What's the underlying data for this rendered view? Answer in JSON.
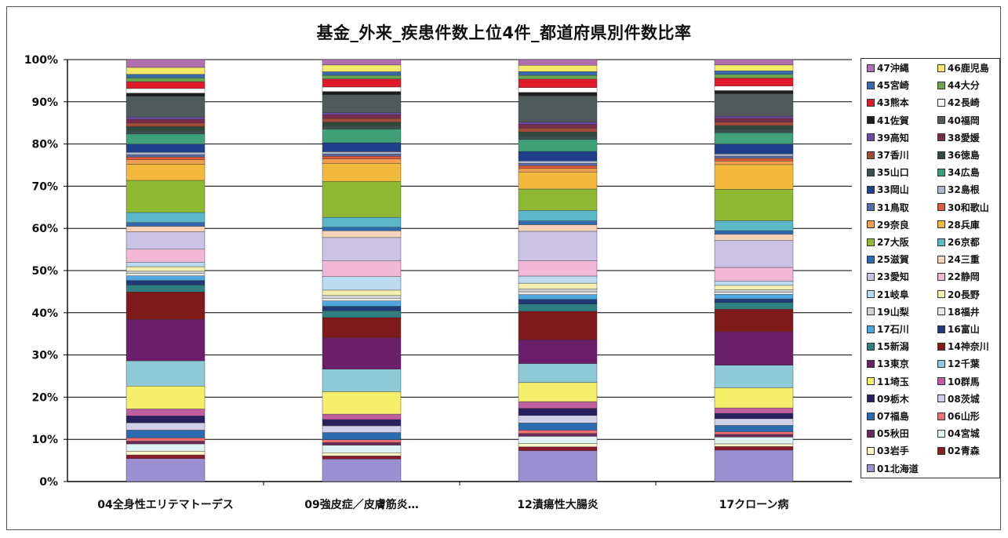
{
  "chart_data": {
    "type": "bar",
    "stacked": true,
    "normalized": true,
    "title": "基金_外来_疾患件数上位4件_都道府県別件数比率",
    "categories": [
      "04全身性エリテマトーデス",
      "09強皮症／皮膚筋炎…",
      "12潰瘍性大腸炎",
      "17クローン病"
    ],
    "y_ticks": [
      "0%",
      "10%",
      "20%",
      "30%",
      "40%",
      "50%",
      "60%",
      "70%",
      "80%",
      "90%",
      "100%"
    ],
    "ylim": [
      0,
      100
    ],
    "grid": true,
    "legend_position": "right",
    "series": [
      {
        "name": "01北海道",
        "color": "#9a8fd0",
        "values": [
          5.0,
          5.0,
          6.5,
          7.0
        ]
      },
      {
        "name": "02青森",
        "color": "#8b1a2b",
        "values": [
          0.8,
          0.7,
          0.8,
          0.8
        ]
      },
      {
        "name": "03岩手",
        "color": "#fff6c8",
        "values": [
          0.8,
          0.7,
          0.7,
          0.6
        ]
      },
      {
        "name": "04宮城",
        "color": "#dff3f3",
        "values": [
          1.6,
          1.7,
          1.5,
          1.5
        ]
      },
      {
        "name": "05秋田",
        "color": "#6a2a5a",
        "values": [
          0.6,
          0.6,
          0.6,
          0.6
        ]
      },
      {
        "name": "06山形",
        "color": "#f07070",
        "values": [
          0.7,
          0.6,
          0.7,
          0.6
        ]
      },
      {
        "name": "07福島",
        "color": "#2b6bb0",
        "values": [
          1.7,
          1.6,
          1.5,
          1.4
        ]
      },
      {
        "name": "08茨城",
        "color": "#d0d0e8",
        "values": [
          1.6,
          1.5,
          1.6,
          1.5
        ]
      },
      {
        "name": "09栃木",
        "color": "#2a2060",
        "values": [
          1.5,
          1.4,
          1.5,
          1.2
        ]
      },
      {
        "name": "10群馬",
        "color": "#c060a0",
        "values": [
          1.5,
          1.2,
          1.4,
          1.2
        ]
      },
      {
        "name": "11埼玉",
        "color": "#f5ef6c",
        "values": [
          5.0,
          5.0,
          4.0,
          4.5
        ]
      },
      {
        "name": "12千葉",
        "color": "#8fcad8",
        "values": [
          5.5,
          5.0,
          4.0,
          5.0
        ]
      },
      {
        "name": "13東京",
        "color": "#6b1f6b",
        "values": [
          9.0,
          7.0,
          5.0,
          7.5
        ]
      },
      {
        "name": "14神奈川",
        "color": "#7f1a1a",
        "values": [
          6.0,
          4.5,
          6.0,
          5.0
        ]
      },
      {
        "name": "15新潟",
        "color": "#2f7f80",
        "values": [
          1.5,
          1.5,
          1.5,
          1.5
        ]
      },
      {
        "name": "16富山",
        "color": "#1f3b7a",
        "values": [
          1.0,
          1.0,
          1.0,
          0.8
        ]
      },
      {
        "name": "17石川",
        "color": "#4ea8de",
        "values": [
          1.0,
          1.2,
          1.0,
          1.0
        ]
      },
      {
        "name": "18福井",
        "color": "#e8e8e8",
        "values": [
          0.5,
          0.6,
          0.6,
          0.5
        ]
      },
      {
        "name": "19山梨",
        "color": "#cfd3d6",
        "values": [
          0.5,
          0.6,
          0.6,
          0.5
        ]
      },
      {
        "name": "20長野",
        "color": "#f3efb0",
        "values": [
          1.0,
          1.2,
          1.2,
          1.0
        ]
      },
      {
        "name": "21岐阜",
        "color": "#bcdbf0",
        "values": [
          1.0,
          3.0,
          1.5,
          1.0
        ]
      },
      {
        "name": "22静岡",
        "color": "#f3b7d8",
        "values": [
          2.8,
          3.5,
          3.2,
          3.0
        ]
      },
      {
        "name": "23愛知",
        "color": "#cbc3e3",
        "values": [
          3.8,
          5.2,
          6.2,
          6.0
        ]
      },
      {
        "name": "24三重",
        "color": "#f6d3b8",
        "values": [
          1.2,
          1.5,
          1.4,
          1.4
        ]
      },
      {
        "name": "25滋賀",
        "color": "#2f6ab1",
        "values": [
          0.8,
          0.8,
          0.8,
          0.8
        ]
      },
      {
        "name": "26京都",
        "color": "#5bb8c9",
        "values": [
          2.2,
          2.2,
          2.2,
          2.2
        ]
      },
      {
        "name": "27大阪",
        "color": "#8fb935",
        "values": [
          7.0,
          8.0,
          4.5,
          7.0
        ]
      },
      {
        "name": "28兵庫",
        "color": "#f2b93c",
        "values": [
          3.5,
          4.0,
          3.5,
          5.5
        ]
      },
      {
        "name": "29奈良",
        "color": "#f0a050",
        "values": [
          1.0,
          1.0,
          0.8,
          0.8
        ]
      },
      {
        "name": "30和歌山",
        "color": "#e05a3a",
        "values": [
          0.6,
          0.6,
          0.6,
          0.6
        ]
      },
      {
        "name": "31鳥取",
        "color": "#5a6aa8",
        "values": [
          0.5,
          0.5,
          0.5,
          0.5
        ]
      },
      {
        "name": "32島根",
        "color": "#b0b8d0",
        "values": [
          0.5,
          0.5,
          0.5,
          0.5
        ]
      },
      {
        "name": "33岡山",
        "color": "#1f3f8a",
        "values": [
          1.8,
          2.0,
          2.0,
          2.2
        ]
      },
      {
        "name": "34広島",
        "color": "#3fa07a",
        "values": [
          2.2,
          3.0,
          2.5,
          2.5
        ]
      },
      {
        "name": "35山口",
        "color": "#3c4f4f",
        "values": [
          0.8,
          0.8,
          0.8,
          0.8
        ]
      },
      {
        "name": "36徳島",
        "color": "#2f4a3a",
        "values": [
          0.8,
          0.8,
          0.8,
          0.8
        ]
      },
      {
        "name": "37香川",
        "color": "#a04a3a",
        "values": [
          0.8,
          0.8,
          0.8,
          0.8
        ]
      },
      {
        "name": "38愛媛",
        "color": "#7a2a4a",
        "values": [
          0.8,
          0.8,
          0.8,
          0.8
        ]
      },
      {
        "name": "39高知",
        "color": "#6a4aa0",
        "values": [
          0.5,
          0.5,
          0.5,
          0.5
        ]
      },
      {
        "name": "40福岡",
        "color": "#4f5a5a",
        "values": [
          4.5,
          4.0,
          5.5,
          5.0
        ]
      },
      {
        "name": "41佐賀",
        "color": "#1e1e1e",
        "values": [
          0.7,
          0.7,
          0.7,
          0.7
        ]
      },
      {
        "name": "42長崎",
        "color": "#ffffff",
        "values": [
          1.0,
          1.0,
          1.0,
          1.0
        ]
      },
      {
        "name": "43熊本",
        "color": "#e01a2a",
        "values": [
          1.5,
          1.8,
          1.8,
          1.8
        ]
      },
      {
        "name": "44大分",
        "color": "#6aa84f",
        "values": [
          0.8,
          0.8,
          0.8,
          0.8
        ]
      },
      {
        "name": "45宮崎",
        "color": "#3a6aaa",
        "values": [
          0.8,
          0.8,
          0.8,
          0.8
        ]
      },
      {
        "name": "46鹿児島",
        "color": "#f5ea6a",
        "values": [
          1.5,
          1.5,
          1.3,
          1.3
        ]
      },
      {
        "name": "47沖縄",
        "color": "#b070b0",
        "values": [
          1.7,
          1.2,
          1.2,
          1.2
        ]
      }
    ]
  }
}
